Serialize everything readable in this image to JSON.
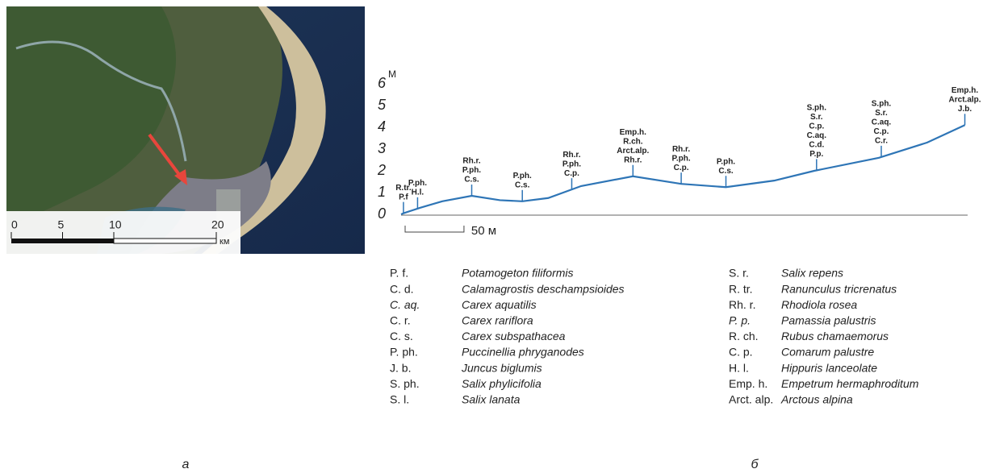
{
  "map": {
    "scale_ticks": [
      0,
      5,
      10,
      20
    ],
    "scale_lim": [
      0,
      20
    ],
    "scale_unit": "км",
    "caption": "а"
  },
  "chart_data": {
    "type": "line",
    "y_label": "М",
    "color": "#2e75b6",
    "x": [
      0,
      2,
      16,
      35,
      60,
      84,
      103,
      125,
      153,
      197,
      238,
      276,
      317,
      351,
      406,
      447,
      479
    ],
    "values": [
      0,
      0.05,
      0.3,
      0.6,
      0.85,
      0.65,
      0.6,
      0.75,
      1.3,
      1.75,
      1.4,
      1.25,
      1.55,
      2.0,
      2.6,
      3.3,
      4.1
    ],
    "xlim": [
      0,
      480
    ],
    "ylim": [
      0,
      6
    ],
    "yticks": [
      0,
      1,
      2,
      3,
      4,
      5,
      6
    ],
    "scale_bar": {
      "value": 50,
      "label": "50 м"
    },
    "annotations": [
      {
        "x": 2,
        "lines": [
          "R.tr.",
          "P.f"
        ]
      },
      {
        "x": 14,
        "lines": [
          "P.ph.",
          "H.l."
        ]
      },
      {
        "x": 60,
        "lines": [
          "Rh.r.",
          "P.ph.",
          "C.s."
        ]
      },
      {
        "x": 103,
        "lines": [
          "P.ph.",
          "C.s."
        ]
      },
      {
        "x": 145,
        "lines": [
          "Rh.r.",
          "P.ph.",
          "C.p."
        ]
      },
      {
        "x": 197,
        "lines": [
          "Emp.h.",
          "R.ch.",
          "Arct.alp.",
          "Rh.r."
        ]
      },
      {
        "x": 238,
        "lines": [
          "Rh.r.",
          "P.ph.",
          "C.p."
        ]
      },
      {
        "x": 276,
        "lines": [
          "P.ph.",
          "C.s."
        ]
      },
      {
        "x": 353,
        "lines": [
          "S.ph.",
          "S.r.",
          "C.p.",
          "C.aq.",
          "C.d.",
          "P.p."
        ]
      },
      {
        "x": 408,
        "lines": [
          "S.ph.",
          "S.r.",
          "C.aq.",
          "C.p.",
          "C.r."
        ]
      },
      {
        "x": 479,
        "lines": [
          "Emp.h.",
          "Arct.alp.",
          "J.b."
        ]
      }
    ],
    "caption": "б"
  },
  "legend": {
    "left": [
      {
        "abbr": "P. f.",
        "name": "Potamogeton filiformis"
      },
      {
        "abbr": "C. d.",
        "name": "Calamagrostis deschampsioides"
      },
      {
        "abbr": "C. aq.",
        "name": "Carex aquatilis",
        "abbr_italic": true
      },
      {
        "abbr": "C. r.",
        "name": "Carex rariflora"
      },
      {
        "abbr": "C. s.",
        "name": "Carex subspathacea"
      },
      {
        "abbr": "P. ph.",
        "name": "Puccinellia phryganodes"
      },
      {
        "abbr": "J. b.",
        "name": "Juncus biglumis"
      },
      {
        "abbr": "S. ph.",
        "name": "Salix phylicifolia"
      },
      {
        "abbr": "S. l.",
        "name": "Salix lanata"
      }
    ],
    "right": [
      {
        "abbr": "S. r.",
        "name": "Salix repens"
      },
      {
        "abbr": "R. tr.",
        "name": "Ranunculus tricrenatus"
      },
      {
        "abbr": "Rh. r.",
        "name": "Rhodiola rosea"
      },
      {
        "abbr": "P. p.",
        "name": "Pamassia palustris",
        "abbr_italic": true
      },
      {
        "abbr": "R. ch.",
        "name": "Rubus chamaemorus"
      },
      {
        "abbr": "C. p.",
        "name": "Comarum palustre"
      },
      {
        "abbr": "H. l.",
        "name": "Hippuris lanceolate"
      },
      {
        "abbr": "Emp. h.",
        "name": "Empetrum hermaphroditum"
      },
      {
        "abbr": "Arct. alp.",
        "name": "Arctous alpina"
      }
    ]
  }
}
